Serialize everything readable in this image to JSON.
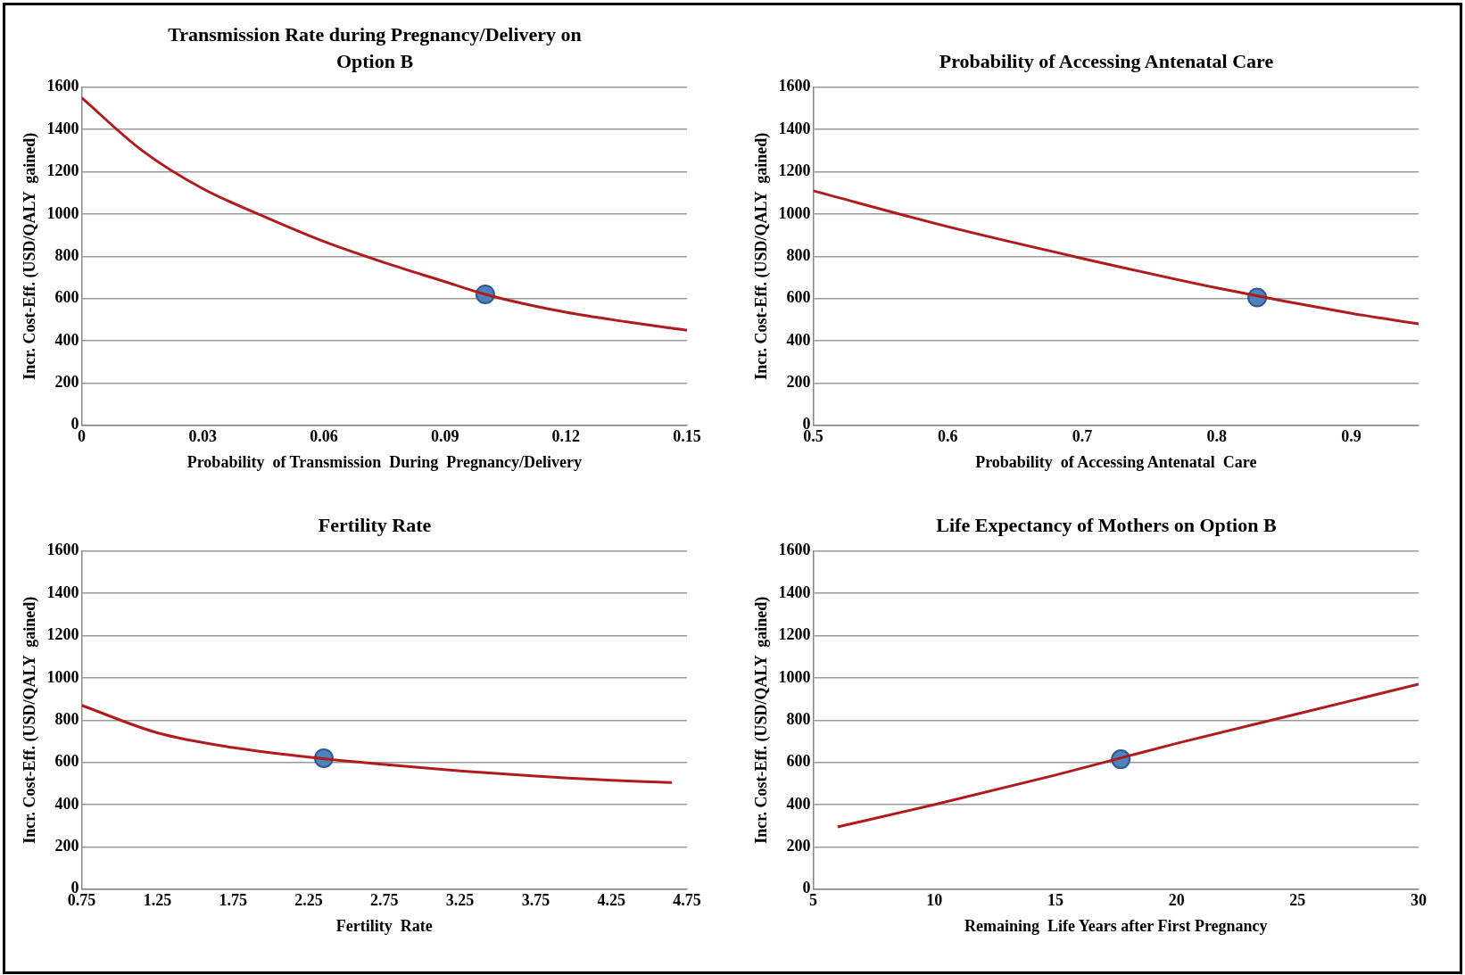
{
  "chart_data": [
    {
      "type": "line",
      "title": "Transmission Rate during Pregnancy/Delivery on Option B",
      "xlabel": "Probability  of Transmission  During  Pregnancy/Delivery",
      "ylabel": "Incr. Cost-Eff. (USD/QALY  gained)",
      "xlim": [
        0,
        0.15
      ],
      "xticks": [
        0,
        0.03,
        0.06,
        0.09,
        0.12,
        0.15
      ],
      "ylim": [
        0,
        1600
      ],
      "yticks": [
        0,
        200,
        400,
        600,
        800,
        1000,
        1200,
        1400,
        1600
      ],
      "grid": "y",
      "legend": false,
      "series": [
        {
          "color": "#b01c1c",
          "marker": "none",
          "x": [
            0,
            0.015,
            0.03,
            0.045,
            0.06,
            0.075,
            0.09,
            0.1,
            0.12,
            0.135,
            0.15
          ],
          "values": [
            1550,
            1300,
            1120,
            990,
            870,
            770,
            680,
            620,
            535,
            490,
            450
          ]
        },
        {
          "type": "scatter",
          "color": "#4f81bd",
          "marker": "circle",
          "x": [
            0.1
          ],
          "values": [
            620
          ]
        }
      ]
    },
    {
      "type": "line",
      "title": "Probability of Accessing Antenatal Care",
      "xlabel": "Probability  of Accessing Antenatal  Care",
      "ylabel": "Incr. Cost-Eff. (USD/QALY  gained)",
      "xlim": [
        0.5,
        0.95
      ],
      "xticks": [
        0.5,
        0.6,
        0.7,
        0.8,
        0.9
      ],
      "ylim": [
        0,
        1600
      ],
      "yticks": [
        0,
        200,
        400,
        600,
        800,
        1000,
        1200,
        1400,
        1600
      ],
      "grid": "y",
      "legend": false,
      "series": [
        {
          "color": "#b01c1c",
          "marker": "none",
          "x": [
            0.5,
            0.6,
            0.7,
            0.8,
            0.9,
            0.95
          ],
          "values": [
            1110,
            940,
            790,
            650,
            530,
            480
          ]
        },
        {
          "type": "scatter",
          "color": "#4f81bd",
          "marker": "circle",
          "x": [
            0.83
          ],
          "values": [
            605
          ]
        }
      ]
    },
    {
      "type": "line",
      "title": "Fertility Rate",
      "xlabel": "Fertility  Rate",
      "ylabel": "Incr. Cost-Eff. (USD/QALY  gained)",
      "xlim": [
        0.75,
        4.75
      ],
      "xticks": [
        0.75,
        1.25,
        1.75,
        2.25,
        2.75,
        3.25,
        3.75,
        4.25,
        4.75
      ],
      "ylim": [
        0,
        1600
      ],
      "yticks": [
        0,
        200,
        400,
        600,
        800,
        1000,
        1200,
        1400,
        1600
      ],
      "grid": "y",
      "legend": false,
      "series": [
        {
          "color": "#b01c1c",
          "marker": "none",
          "x": [
            0.75,
            1.25,
            1.75,
            2.25,
            2.75,
            3.25,
            3.75,
            4.25,
            4.65
          ],
          "values": [
            870,
            740,
            670,
            625,
            590,
            560,
            535,
            515,
            505
          ]
        },
        {
          "type": "scatter",
          "color": "#4f81bd",
          "marker": "circle",
          "x": [
            2.35
          ],
          "values": [
            620
          ]
        }
      ]
    },
    {
      "type": "line",
      "title": "Life Expectancy of Mothers on Option B",
      "xlabel": "Remaining  Life Years after First Pregnancy",
      "ylabel": "Incr. Cost-Eff. (USD/QALY  gained)",
      "xlim": [
        5,
        30
      ],
      "xticks": [
        5,
        10,
        15,
        20,
        25,
        30
      ],
      "ylim": [
        0,
        1600
      ],
      "yticks": [
        0,
        200,
        400,
        600,
        800,
        1000,
        1200,
        1400,
        1600
      ],
      "grid": "y",
      "legend": false,
      "series": [
        {
          "color": "#b01c1c",
          "marker": "none",
          "x": [
            6,
            10,
            15,
            20,
            25,
            30
          ],
          "values": [
            295,
            400,
            540,
            690,
            830,
            970
          ]
        },
        {
          "type": "scatter",
          "color": "#4f81bd",
          "marker": "circle",
          "x": [
            17.7
          ],
          "values": [
            615
          ]
        }
      ]
    }
  ]
}
